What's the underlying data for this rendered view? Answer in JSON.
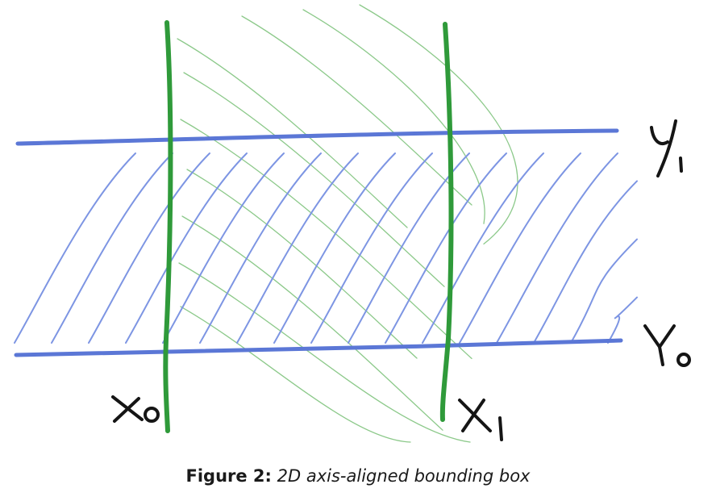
{
  "figure": {
    "label": "Figure 2:",
    "text": "2D axis-aligned bounding box"
  },
  "labels": {
    "x0": "X₀",
    "x1": "X₁",
    "y0": "Y₀",
    "y1": "Y₁"
  },
  "colors": {
    "green": "#2f9a3a",
    "green_light": "#8cc98a",
    "blue": "#5b77d6",
    "blue_light": "#7d95e3",
    "ink": "#151515"
  }
}
